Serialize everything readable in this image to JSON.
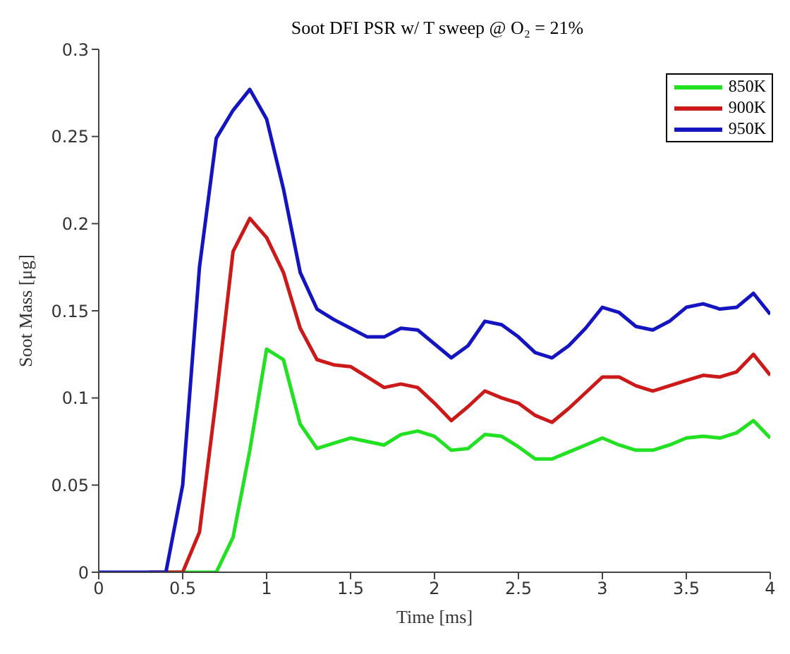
{
  "chart_data": {
    "type": "line",
    "title": "Soot DFI PSR w/ T sweep @ O₂ = 21%",
    "xlabel": "Time [ms]",
    "ylabel": "Soot Mass [μg]",
    "x": [
      0,
      0.1,
      0.2,
      0.3,
      0.4,
      0.5,
      0.6,
      0.7,
      0.8,
      0.9,
      1.0,
      1.1,
      1.2,
      1.3,
      1.4,
      1.5,
      1.6,
      1.7,
      1.8,
      1.9,
      2.0,
      2.1,
      2.2,
      2.3,
      2.4,
      2.5,
      2.6,
      2.7,
      2.8,
      2.9,
      3.0,
      3.1,
      3.2,
      3.3,
      3.4,
      3.5,
      3.6,
      3.7,
      3.8,
      3.9,
      4.0
    ],
    "series": [
      {
        "name": "850K",
        "color": "#22e022",
        "values": [
          null,
          null,
          null,
          null,
          0,
          0,
          0,
          0,
          0.02,
          0.07,
          0.128,
          0.122,
          0.085,
          0.071,
          0.074,
          0.077,
          0.075,
          0.073,
          0.079,
          0.081,
          0.078,
          0.07,
          0.071,
          0.079,
          0.078,
          0.072,
          0.065,
          0.065,
          0.069,
          0.073,
          0.077,
          0.073,
          0.07,
          0.07,
          0.073,
          0.077,
          0.078,
          0.077,
          0.08,
          0.087,
          0.077
        ]
      },
      {
        "name": "900K",
        "color": "#cc1a1a",
        "values": [
          null,
          null,
          null,
          0,
          0,
          0,
          0.023,
          0.1,
          0.184,
          0.203,
          0.192,
          0.172,
          0.14,
          0.122,
          0.119,
          0.118,
          0.112,
          0.106,
          0.108,
          0.106,
          0.097,
          0.087,
          0.095,
          0.104,
          0.1,
          0.097,
          0.09,
          0.086,
          0.094,
          0.103,
          0.112,
          0.112,
          0.107,
          0.104,
          0.107,
          0.11,
          0.113,
          0.112,
          0.115,
          0.125,
          0.113
        ]
      },
      {
        "name": "950K",
        "color": "#1414c0",
        "values": [
          0,
          0,
          0,
          0,
          0,
          0.05,
          0.175,
          0.249,
          0.265,
          0.277,
          0.26,
          0.22,
          0.172,
          0.151,
          0.145,
          0.14,
          0.135,
          0.135,
          0.14,
          0.139,
          0.131,
          0.123,
          0.13,
          0.144,
          0.142,
          0.135,
          0.126,
          0.123,
          0.13,
          0.14,
          0.152,
          0.149,
          0.141,
          0.139,
          0.144,
          0.152,
          0.154,
          0.151,
          0.152,
          0.16,
          0.148
        ]
      }
    ],
    "xlim": [
      0,
      4
    ],
    "xticks": [
      0,
      0.5,
      1,
      1.5,
      2,
      2.5,
      3,
      3.5,
      4
    ],
    "ylim": [
      0,
      0.3
    ],
    "yticks": [
      0,
      0.05,
      0.1,
      0.15,
      0.2,
      0.25,
      0.3
    ],
    "grid": false,
    "legend": "top right",
    "marker": "none",
    "line_style": "solid"
  }
}
